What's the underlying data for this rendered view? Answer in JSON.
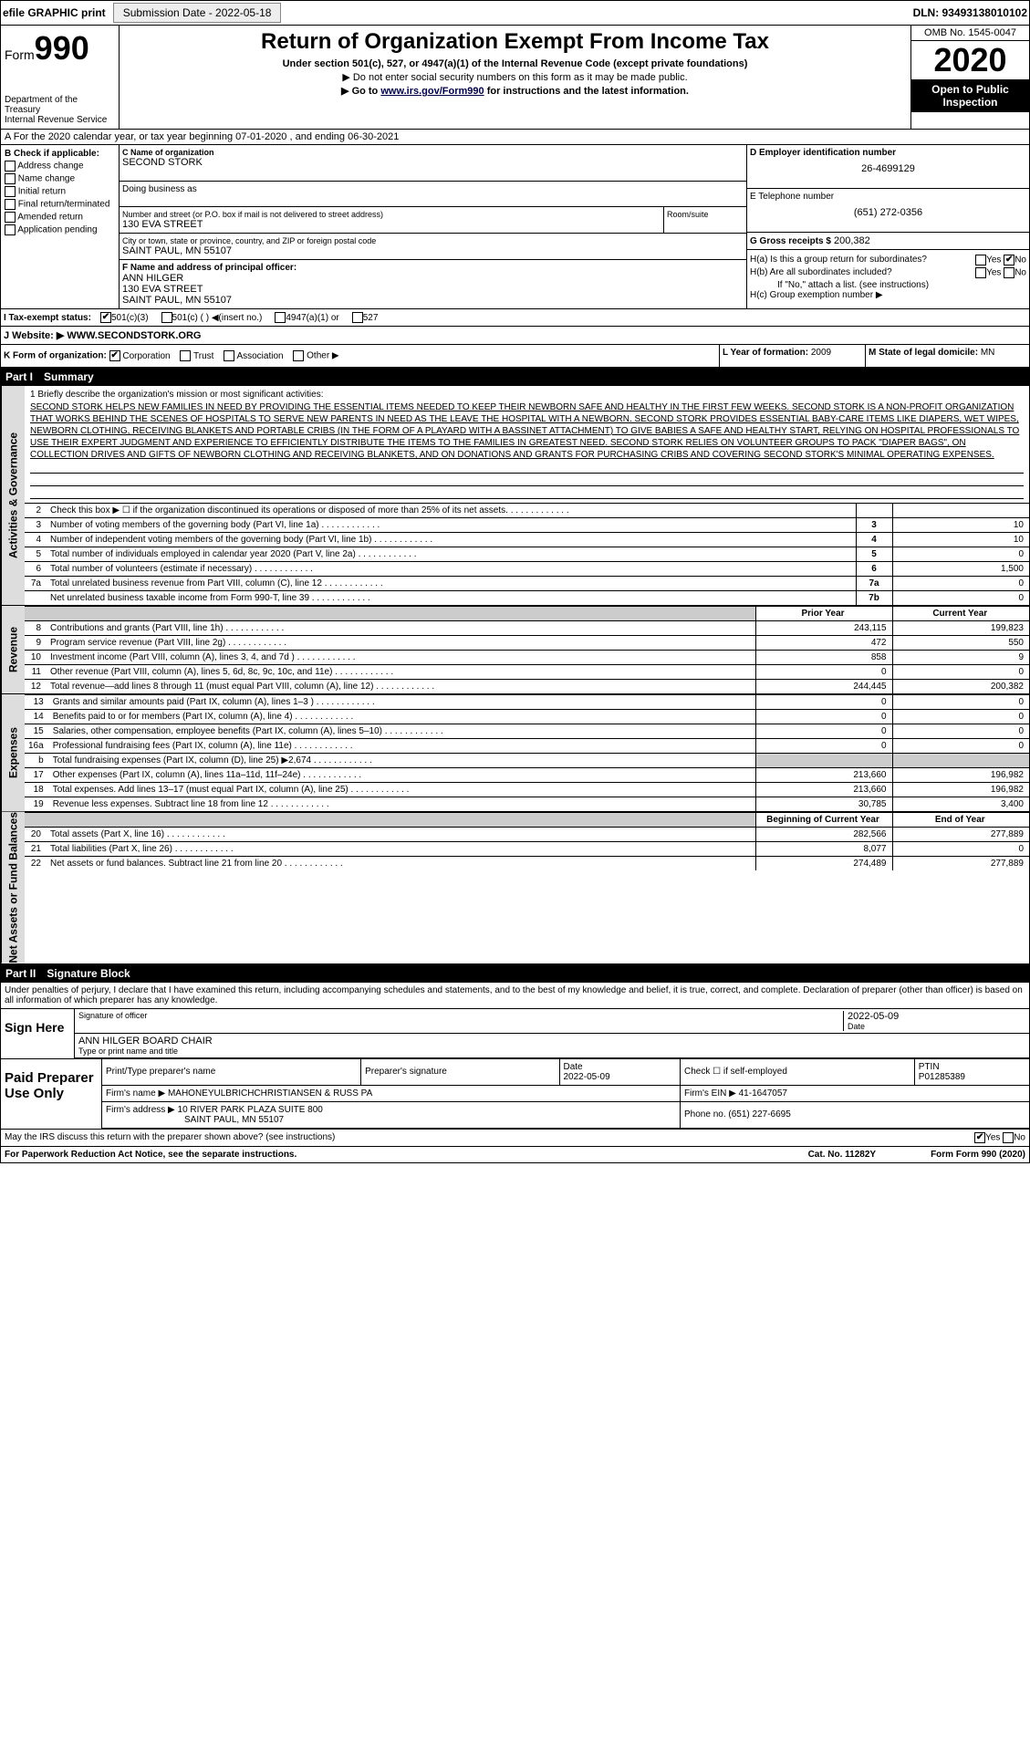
{
  "top": {
    "efile": "efile GRAPHIC print",
    "submission_btn": "Submission Date - 2022-05-18",
    "dln": "DLN: 93493138010102"
  },
  "header": {
    "form_prefix": "Form",
    "form_num": "990",
    "title": "Return of Organization Exempt From Income Tax",
    "subtitle": "Under section 501(c), 527, or 4947(a)(1) of the Internal Revenue Code (except private foundations)",
    "note1": "▶ Do not enter social security numbers on this form as it may be made public.",
    "note2_pre": "▶ Go to ",
    "note2_link": "www.irs.gov/Form990",
    "note2_post": " for instructions and the latest information.",
    "dept": "Department of the Treasury\nInternal Revenue Service",
    "omb": "OMB No. 1545-0047",
    "year": "2020",
    "open": "Open to Public Inspection"
  },
  "period": "A For the 2020 calendar year, or tax year beginning 07-01-2020    , and ending 06-30-2021",
  "b": {
    "hdr": "B Check if applicable:",
    "opts": [
      "Address change",
      "Name change",
      "Initial return",
      "Final return/terminated",
      "Amended return",
      "Application pending"
    ]
  },
  "c": {
    "name_lbl": "C Name of organization",
    "name": "SECOND STORK",
    "dba": "Doing business as",
    "addr_lbl": "Number and street (or P.O. box if mail is not delivered to street address)",
    "addr": "130 EVA STREET",
    "suite_lbl": "Room/suite",
    "city_lbl": "City or town, state or province, country, and ZIP or foreign postal code",
    "city": "SAINT PAUL, MN  55107"
  },
  "d": {
    "lbl": "D Employer identification number",
    "val": "26-4699129"
  },
  "e": {
    "lbl": "E Telephone number",
    "val": "(651) 272-0356"
  },
  "g": {
    "lbl": "G Gross receipts $",
    "val": "200,382"
  },
  "f": {
    "lbl": "F  Name and address of principal officer:",
    "name": "ANN HILGER",
    "addr1": "130 EVA STREET",
    "addr2": "SAINT PAUL, MN  55107"
  },
  "h": {
    "a_lbl": "H(a)  Is this a group return for subordinates?",
    "b_lbl": "H(b)  Are all subordinates included?",
    "b_note": "If \"No,\" attach a list. (see instructions)",
    "c_lbl": "H(c)  Group exemption number ▶",
    "yes": "Yes",
    "no": "No"
  },
  "i": {
    "lbl": "I  Tax-exempt status:",
    "opts": [
      "501(c)(3)",
      "501(c) (  ) ◀(insert no.)",
      "4947(a)(1) or",
      "527"
    ]
  },
  "j": {
    "lbl": "J  Website: ▶",
    "val": "WWW.SECONDSTORK.ORG"
  },
  "k": {
    "lbl": "K Form of organization:",
    "opts": [
      "Corporation",
      "Trust",
      "Association",
      "Other ▶"
    ]
  },
  "l": {
    "lbl": "L Year of formation:",
    "val": "2009"
  },
  "m": {
    "lbl": "M State of legal domicile:",
    "val": "MN"
  },
  "part1": {
    "num": "Part I",
    "title": "Summary"
  },
  "mission": {
    "q": "1  Briefly describe the organization's mission or most significant activities:",
    "txt": "SECOND STORK HELPS NEW FAMILIES IN NEED BY PROVIDING THE ESSENTIAL ITEMS NEEDED TO KEEP THEIR NEWBORN SAFE AND HEALTHY IN THE FIRST FEW WEEKS. SECOND STORK IS A NON-PROFIT ORGANIZATION THAT WORKS BEHIND THE SCENES OF HOSPITALS TO SERVE NEW PARENTS IN NEED AS THE LEAVE THE HOSPITAL WITH A NEWBORN. SECOND STORK PROVIDES ESSENTIAL BABY-CARE ITEMS LIKE DIAPERS, WET WIPES, NEWBORN CLOTHING, RECEIVING BLANKETS AND PORTABLE CRIBS (IN THE FORM OF A PLAYARD WITH A BASSINET ATTACHMENT) TO GIVE BABIES A SAFE AND HEALTHY START, RELYING ON HOSPITAL PROFESSIONALS TO USE THEIR EXPERT JUDGMENT AND EXPERIENCE TO EFFICIENTLY DISTRIBUTE THE ITEMS TO THE FAMILIES IN GREATEST NEED. SECOND STORK RELIES ON VOLUNTEER GROUPS TO PACK \"DIAPER BAGS\", ON COLLECTION DRIVES AND GIFTS OF NEWBORN CLOTHING AND RECEIVING BLANKETS, AND ON DONATIONS AND GRANTS FOR PURCHASING CRIBS AND COVERING SECOND STORK'S MINIMAL OPERATING EXPENSES."
  },
  "gov_rows": [
    {
      "n": "2",
      "t": "Check this box ▶ ☐ if the organization discontinued its operations or disposed of more than 25% of its net assets.",
      "box": "",
      "val": ""
    },
    {
      "n": "3",
      "t": "Number of voting members of the governing body (Part VI, line 1a)",
      "box": "3",
      "val": "10"
    },
    {
      "n": "4",
      "t": "Number of independent voting members of the governing body (Part VI, line 1b)",
      "box": "4",
      "val": "10"
    },
    {
      "n": "5",
      "t": "Total number of individuals employed in calendar year 2020 (Part V, line 2a)",
      "box": "5",
      "val": "0"
    },
    {
      "n": "6",
      "t": "Total number of volunteers (estimate if necessary)",
      "box": "6",
      "val": "1,500"
    },
    {
      "n": "7a",
      "t": "Total unrelated business revenue from Part VIII, column (C), line 12",
      "box": "7a",
      "val": "0"
    },
    {
      "n": "",
      "t": "Net unrelated business taxable income from Form 990-T, line 39",
      "box": "7b",
      "val": "0"
    }
  ],
  "rev_hdr": {
    "prior": "Prior Year",
    "current": "Current Year"
  },
  "rev_rows": [
    {
      "n": "8",
      "t": "Contributions and grants (Part VIII, line 1h)",
      "p": "243,115",
      "c": "199,823"
    },
    {
      "n": "9",
      "t": "Program service revenue (Part VIII, line 2g)",
      "p": "472",
      "c": "550"
    },
    {
      "n": "10",
      "t": "Investment income (Part VIII, column (A), lines 3, 4, and 7d )",
      "p": "858",
      "c": "9"
    },
    {
      "n": "11",
      "t": "Other revenue (Part VIII, column (A), lines 5, 6d, 8c, 9c, 10c, and 11e)",
      "p": "0",
      "c": "0"
    },
    {
      "n": "12",
      "t": "Total revenue—add lines 8 through 11 (must equal Part VIII, column (A), line 12)",
      "p": "244,445",
      "c": "200,382"
    }
  ],
  "exp_rows": [
    {
      "n": "13",
      "t": "Grants and similar amounts paid (Part IX, column (A), lines 1–3 )",
      "p": "0",
      "c": "0"
    },
    {
      "n": "14",
      "t": "Benefits paid to or for members (Part IX, column (A), line 4)",
      "p": "0",
      "c": "0"
    },
    {
      "n": "15",
      "t": "Salaries, other compensation, employee benefits (Part IX, column (A), lines 5–10)",
      "p": "0",
      "c": "0"
    },
    {
      "n": "16a",
      "t": "Professional fundraising fees (Part IX, column (A), line 11e)",
      "p": "0",
      "c": "0"
    },
    {
      "n": "b",
      "t": "Total fundraising expenses (Part IX, column (D), line 25) ▶2,674",
      "p": "",
      "c": "",
      "shaded": true
    },
    {
      "n": "17",
      "t": "Other expenses (Part IX, column (A), lines 11a–11d, 11f–24e)",
      "p": "213,660",
      "c": "196,982"
    },
    {
      "n": "18",
      "t": "Total expenses. Add lines 13–17 (must equal Part IX, column (A), line 25)",
      "p": "213,660",
      "c": "196,982"
    },
    {
      "n": "19",
      "t": "Revenue less expenses. Subtract line 18 from line 12",
      "p": "30,785",
      "c": "3,400"
    }
  ],
  "na_hdr": {
    "begin": "Beginning of Current Year",
    "end": "End of Year"
  },
  "na_rows": [
    {
      "n": "20",
      "t": "Total assets (Part X, line 16)",
      "p": "282,566",
      "c": "277,889"
    },
    {
      "n": "21",
      "t": "Total liabilities (Part X, line 26)",
      "p": "8,077",
      "c": "0"
    },
    {
      "n": "22",
      "t": "Net assets or fund balances. Subtract line 21 from line 20",
      "p": "274,489",
      "c": "277,889"
    }
  ],
  "part2": {
    "num": "Part II",
    "title": "Signature Block"
  },
  "sig": {
    "perjury": "Under penalties of perjury, I declare that I have examined this return, including accompanying schedules and statements, and to the best of my knowledge and belief, it is true, correct, and complete. Declaration of preparer (other than officer) is based on all information of which preparer has any knowledge.",
    "sign_here": "Sign Here",
    "sig_lbl": "Signature of officer",
    "date_lbl": "Date",
    "date": "2022-05-09",
    "name": "ANN HILGER  BOARD CHAIR",
    "name_lbl": "Type or print name and title"
  },
  "prep": {
    "title": "Paid Preparer Use Only",
    "cols": [
      "Print/Type preparer's name",
      "Preparer's signature",
      "Date",
      "Check ☐ if self-employed",
      "PTIN"
    ],
    "date": "2022-05-09",
    "ptin": "P01285389",
    "firm_lbl": "Firm's name    ▶",
    "firm": "MAHONEYULBRICHCHRISTIANSEN & RUSS PA",
    "ein_lbl": "Firm's EIN ▶",
    "ein": "41-1647057",
    "addr_lbl": "Firm's address ▶",
    "addr1": "10 RIVER PARK PLAZA SUITE 800",
    "addr2": "SAINT PAUL, MN  55107",
    "phone_lbl": "Phone no.",
    "phone": "(651) 227-6695"
  },
  "discuss": "May the IRS discuss this return with the preparer shown above? (see instructions)",
  "footer": {
    "pra": "For Paperwork Reduction Act Notice, see the separate instructions.",
    "cat": "Cat. No. 11282Y",
    "form": "Form 990 (2020)"
  },
  "side_labels": {
    "gov": "Activities & Governance",
    "rev": "Revenue",
    "exp": "Expenses",
    "na": "Net Assets or Fund Balances"
  }
}
